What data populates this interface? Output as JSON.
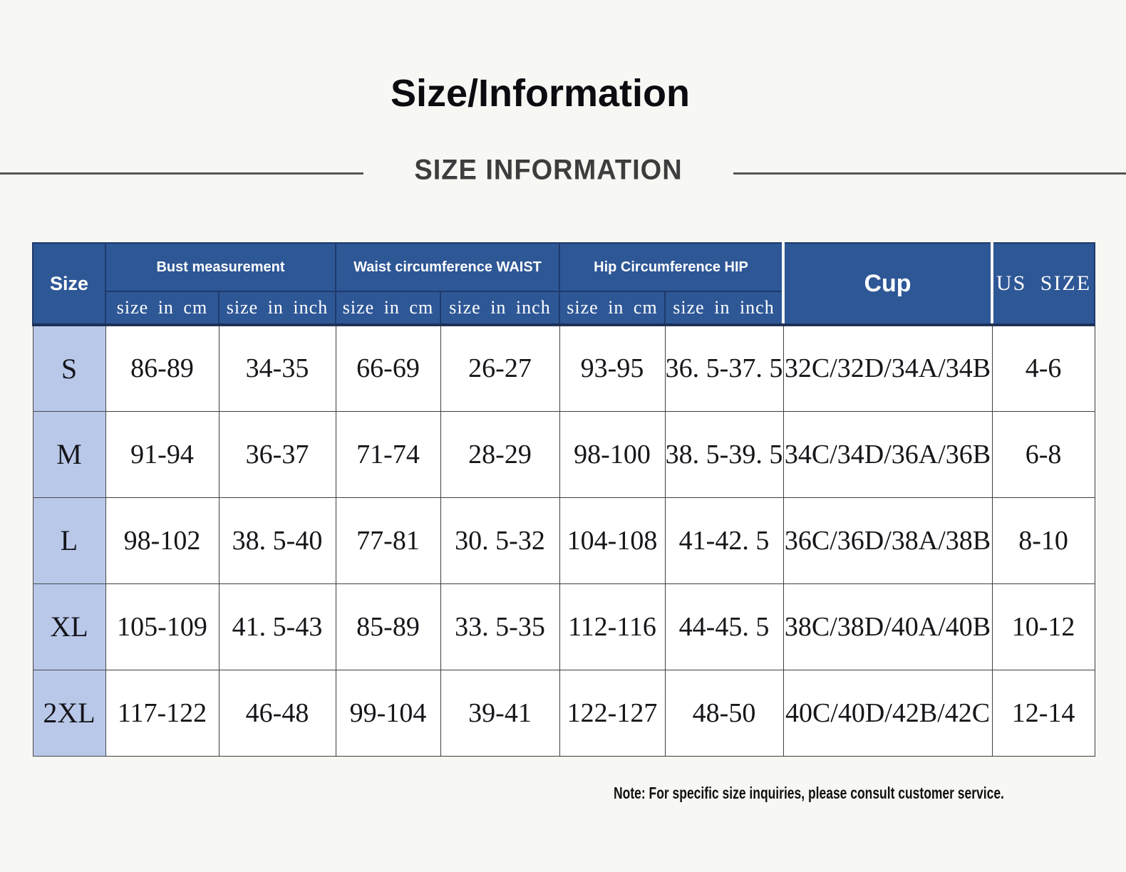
{
  "page": {
    "title": "Size/Information",
    "banner": "SIZE INFORMATION",
    "note": "Note: For specific size inquiries, please consult customer service."
  },
  "table": {
    "size_header": "Size",
    "col_groups": [
      {
        "label": "Bust measurement"
      },
      {
        "label": "Waist circumference WAIST"
      },
      {
        "label": "Hip Circumference HIP"
      }
    ],
    "sub_headers": [
      "size in cm",
      "size in inch",
      "size in cm",
      "size in inch",
      "size in cm",
      "size in inch"
    ],
    "cup_header": "Cup",
    "us_header": "US SIZE",
    "rows": [
      {
        "size": "S",
        "cells": [
          "86-89",
          "34-35",
          "66-69",
          "26-27",
          "93-95",
          "36. 5-37. 5",
          "32C/32D/34A/34B",
          "4-6"
        ]
      },
      {
        "size": "M",
        "cells": [
          "91-94",
          "36-37",
          "71-74",
          "28-29",
          "98-100",
          "38. 5-39. 5",
          "34C/34D/36A/36B",
          "6-8"
        ]
      },
      {
        "size": "L",
        "cells": [
          "98-102",
          "38. 5-40",
          "77-81",
          "30. 5-32",
          "104-108",
          "41-42. 5",
          "36C/36D/38A/38B",
          "8-10"
        ]
      },
      {
        "size": "XL",
        "cells": [
          "105-109",
          "41. 5-43",
          "85-89",
          "33. 5-35",
          "112-116",
          "44-45. 5",
          "38C/38D/40A/40B",
          "10-12"
        ]
      },
      {
        "size": "2XL",
        "cells": [
          "117-122",
          "46-48",
          "99-104",
          "39-41",
          "122-127",
          "48-50",
          "40C/40D/42B/42C",
          "12-14"
        ]
      }
    ],
    "colors": {
      "header_bg": "#2e5796",
      "header_border": "#1f3a6b",
      "header_bottom": "#1e3157",
      "row_label_bg": "#b9c8e9",
      "cell_border": "#3f3f3f",
      "page_bg": "#f7f7f4",
      "title_color": "#0b0b10",
      "banner_color": "#3d3d3d",
      "line_color": "#555555"
    }
  }
}
